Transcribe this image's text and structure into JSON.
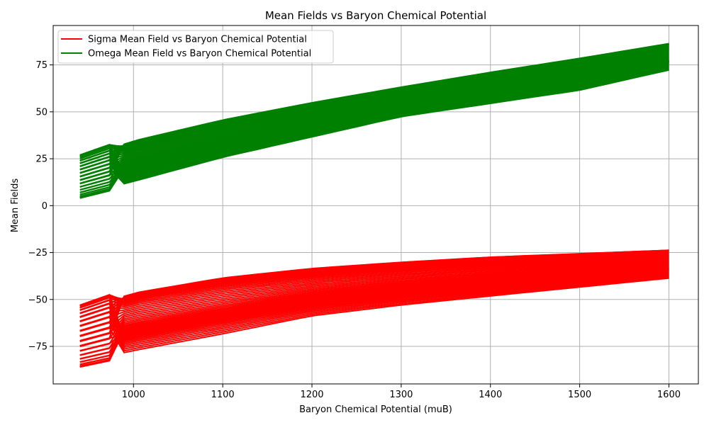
{
  "chart_data": {
    "type": "line",
    "title": "Mean Fields vs Baryon Chemical Potential",
    "xlabel": "Baryon Chemical Potential (muB)",
    "ylabel": "Mean Fields",
    "xlim": [
      910,
      1633
    ],
    "ylim": [
      -95,
      96
    ],
    "xticks": [
      1000,
      1100,
      1200,
      1300,
      1400,
      1500,
      1600
    ],
    "yticks": [
      -75,
      -50,
      -25,
      0,
      25,
      50,
      75
    ],
    "xtick_labels": [
      "1000",
      "1100",
      "1200",
      "1300",
      "1400",
      "1500",
      "1600"
    ],
    "ytick_labels": [
      "−75",
      "−50",
      "−25",
      "0",
      "25",
      "50",
      "75"
    ],
    "grid": true,
    "legend_position": "top-left",
    "series": [
      {
        "name": "Sigma Mean Field vs Baryon Chemical Potential",
        "color": "#ff0000",
        "x_start": 940,
        "x_end": 1600,
        "start_range": [
          -86,
          -53
        ],
        "end_range": [
          -40,
          -22
        ],
        "lower_envelope": {
          "x": [
            940,
            1000,
            1100,
            1200,
            1300,
            1400,
            1500,
            1600
          ],
          "y": [
            -86,
            -80,
            -71,
            -61,
            -55,
            -50,
            -45,
            -40
          ]
        },
        "upper_envelope": {
          "x": [
            940,
            1000,
            1100,
            1200,
            1300,
            1400,
            1500,
            1600
          ],
          "y": [
            -53,
            -43,
            -35,
            -30.5,
            -27.5,
            -25,
            -23.5,
            -22
          ]
        }
      },
      {
        "name": "Omega Mean Field vs Baryon Chemical Potential",
        "color": "#008000",
        "x_start": 940,
        "x_end": 1600,
        "start_range": [
          4,
          27
        ],
        "end_range": [
          71,
          88
        ],
        "lower_envelope": {
          "x": [
            940,
            1000,
            1100,
            1200,
            1300,
            1400,
            1500,
            1600
          ],
          "y": [
            4,
            11,
            24,
            35,
            46,
            53,
            60,
            71
          ]
        },
        "upper_envelope": {
          "x": [
            940,
            1000,
            1100,
            1200,
            1300,
            1400,
            1500,
            1600
          ],
          "y": [
            27,
            37,
            48,
            57,
            65,
            73,
            80.5,
            88
          ]
        }
      }
    ]
  }
}
